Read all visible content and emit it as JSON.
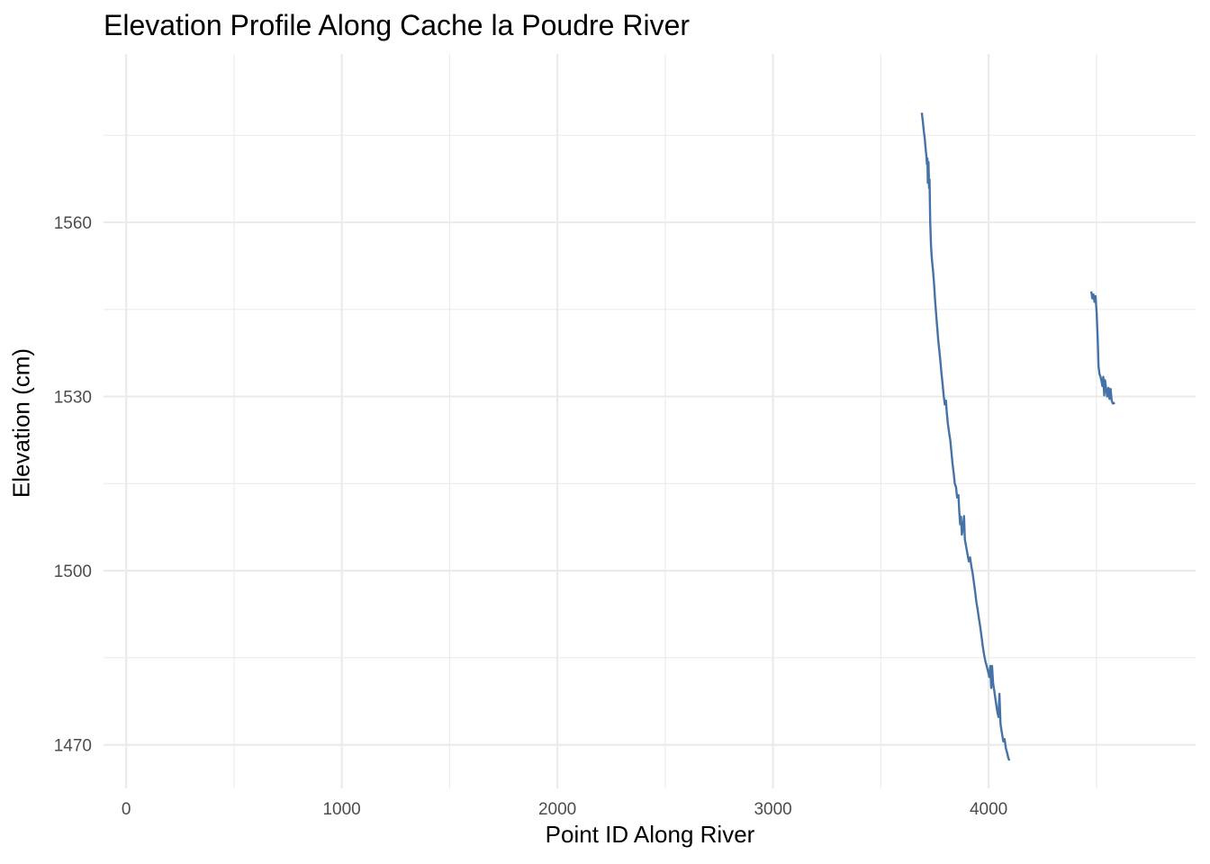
{
  "chart_data": {
    "type": "line",
    "title": "Elevation Profile Along Cache la Poudre River",
    "xlabel": "Point ID Along River",
    "ylabel": "Elevation (cm)",
    "xlim": [
      -105,
      4960
    ],
    "ylim": [
      1462.5,
      1589
    ],
    "x_ticks": [
      0,
      1000,
      2000,
      3000,
      4000
    ],
    "x_tick_labels": [
      "0",
      "1000",
      "2000",
      "3000",
      "4000"
    ],
    "x_minor_ticks": [
      500,
      1500,
      2500,
      3500,
      4500
    ],
    "y_ticks": [
      1470,
      1500,
      1530,
      1560
    ],
    "y_tick_labels": [
      "1470",
      "1500",
      "1530",
      "1560"
    ],
    "y_minor_ticks": [
      1485,
      1515,
      1545,
      1575
    ],
    "grid": true,
    "legend": "none",
    "colors": {
      "line": "#4572a7",
      "grid": "#ebebeb"
    },
    "series": [
      {
        "values": [
          [
            3690,
            1578.9
          ],
          [
            3695,
            1577.4
          ],
          [
            3700,
            1575.6
          ],
          [
            3704,
            1574.4
          ],
          [
            3708,
            1572.6
          ],
          [
            3712,
            1571.2
          ],
          [
            3714,
            1570.0
          ],
          [
            3716,
            1571.0
          ],
          [
            3718,
            1566.8
          ],
          [
            3721,
            1570.4
          ],
          [
            3724,
            1565.9
          ],
          [
            3726,
            1567.4
          ],
          [
            3729,
            1560.2
          ],
          [
            3733,
            1556.0
          ],
          [
            3737,
            1553.6
          ],
          [
            3742,
            1551.8
          ],
          [
            3747,
            1549.4
          ],
          [
            3752,
            1546.5
          ],
          [
            3757,
            1544.0
          ],
          [
            3761,
            1542.1
          ],
          [
            3766,
            1539.8
          ],
          [
            3771,
            1538.0
          ],
          [
            3776,
            1536.3
          ],
          [
            3781,
            1534.2
          ],
          [
            3787,
            1532.0
          ],
          [
            3792,
            1530.0
          ],
          [
            3797,
            1528.6
          ],
          [
            3802,
            1529.3
          ],
          [
            3806,
            1527.3
          ],
          [
            3811,
            1525.4
          ],
          [
            3816,
            1524.0
          ],
          [
            3822,
            1522.5
          ],
          [
            3827,
            1520.6
          ],
          [
            3832,
            1518.6
          ],
          [
            3838,
            1516.8
          ],
          [
            3843,
            1515.0
          ],
          [
            3849,
            1514.4
          ],
          [
            3854,
            1512.6
          ],
          [
            3860,
            1513.0
          ],
          [
            3864,
            1510.2
          ],
          [
            3868,
            1508.0
          ],
          [
            3872,
            1509.3
          ],
          [
            3876,
            1506.2
          ],
          [
            3881,
            1507.5
          ],
          [
            3886,
            1509.4
          ],
          [
            3890,
            1505.4
          ],
          [
            3896,
            1504.1
          ],
          [
            3902,
            1502.9
          ],
          [
            3908,
            1501.6
          ],
          [
            3914,
            1502.3
          ],
          [
            3920,
            1500.8
          ],
          [
            3926,
            1499.5
          ],
          [
            3932,
            1497.9
          ],
          [
            3938,
            1496.3
          ],
          [
            3943,
            1494.7
          ],
          [
            3949,
            1493.3
          ],
          [
            3955,
            1491.8
          ],
          [
            3961,
            1490.3
          ],
          [
            3967,
            1488.7
          ],
          [
            3973,
            1487.0
          ],
          [
            3979,
            1485.5
          ],
          [
            3985,
            1484.4
          ],
          [
            3991,
            1483.6
          ],
          [
            3997,
            1482.7
          ],
          [
            4003,
            1481.7
          ],
          [
            4008,
            1483.6
          ],
          [
            4012,
            1479.8
          ],
          [
            4016,
            1483.6
          ],
          [
            4021,
            1480.6
          ],
          [
            4026,
            1479.4
          ],
          [
            4031,
            1478.1
          ],
          [
            4036,
            1476.8
          ],
          [
            4041,
            1475.6
          ],
          [
            4046,
            1474.8
          ],
          [
            4050,
            1478.8
          ],
          [
            4055,
            1473.6
          ],
          [
            4061,
            1472.2
          ],
          [
            4068,
            1470.6
          ],
          [
            4074,
            1471.0
          ],
          [
            4080,
            1469.4
          ],
          [
            4086,
            1468.6
          ],
          [
            4091,
            1467.8
          ],
          [
            4096,
            1467.3
          ]
        ]
      },
      {
        "values": [
          [
            4476,
            1548.1
          ],
          [
            4481,
            1546.9
          ],
          [
            4486,
            1547.6
          ],
          [
            4491,
            1546.3
          ],
          [
            4496,
            1547.3
          ],
          [
            4501,
            1544.4
          ],
          [
            4506,
            1539.8
          ],
          [
            4510,
            1535.2
          ],
          [
            4514,
            1533.9
          ],
          [
            4519,
            1533.4
          ],
          [
            4524,
            1532.6
          ],
          [
            4528,
            1531.8
          ],
          [
            4532,
            1533.4
          ],
          [
            4536,
            1530.2
          ],
          [
            4540,
            1532.8
          ],
          [
            4545,
            1531.4
          ],
          [
            4550,
            1530.0
          ],
          [
            4556,
            1531.5
          ],
          [
            4561,
            1529.6
          ],
          [
            4566,
            1531.3
          ],
          [
            4571,
            1529.3
          ],
          [
            4576,
            1528.8
          ],
          [
            4586,
            1528.9
          ]
        ]
      }
    ]
  }
}
